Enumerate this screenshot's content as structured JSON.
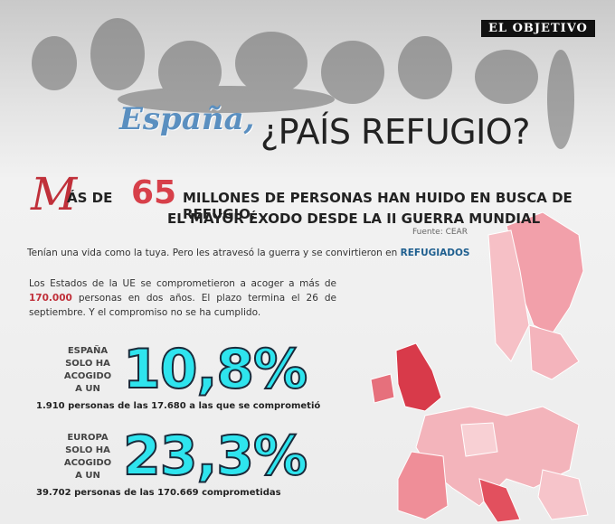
{
  "logo": "EL OBJETIVO",
  "title": {
    "script": "España,",
    "main": "¿PAÍS REFUGIO?"
  },
  "headline": {
    "initial": "M",
    "prefix": "ÁS DE",
    "number": "65",
    "line1": "MILLONES DE PERSONAS HAN HUIDO EN BUSCA DE REFUGIO,",
    "line2": "EL MAYOR ÉXODO DESDE LA II GUERRA MUNDIAL",
    "source": "Fuente: CEAR"
  },
  "intro": {
    "text": "Tenían una vida como la tuya. Pero les atravesó la guerra y se convirtieron en",
    "highlight": "REFUGIADOS"
  },
  "paragraph": {
    "before": "Los Estados de la UE se comprometieron a acoger a más de",
    "highlight": "170.000",
    "after": "personas en dos años. El plazo termina el 26 de septiembre. Y el compromiso no se ha cumplido."
  },
  "stats": [
    {
      "label": [
        "ESPAÑA",
        "SOLO HA",
        "ACOGIDO",
        "A UN"
      ],
      "value": "10,8%",
      "detail": "1.910 personas de las 17.680 a las que se comprometió"
    },
    {
      "label": [
        "EUROPA",
        "SOLO HA",
        "ACOGIDO",
        "A UN"
      ],
      "value": "23,3%",
      "detail": "39.702 personas de las 170.669 comprometidas"
    }
  ]
}
